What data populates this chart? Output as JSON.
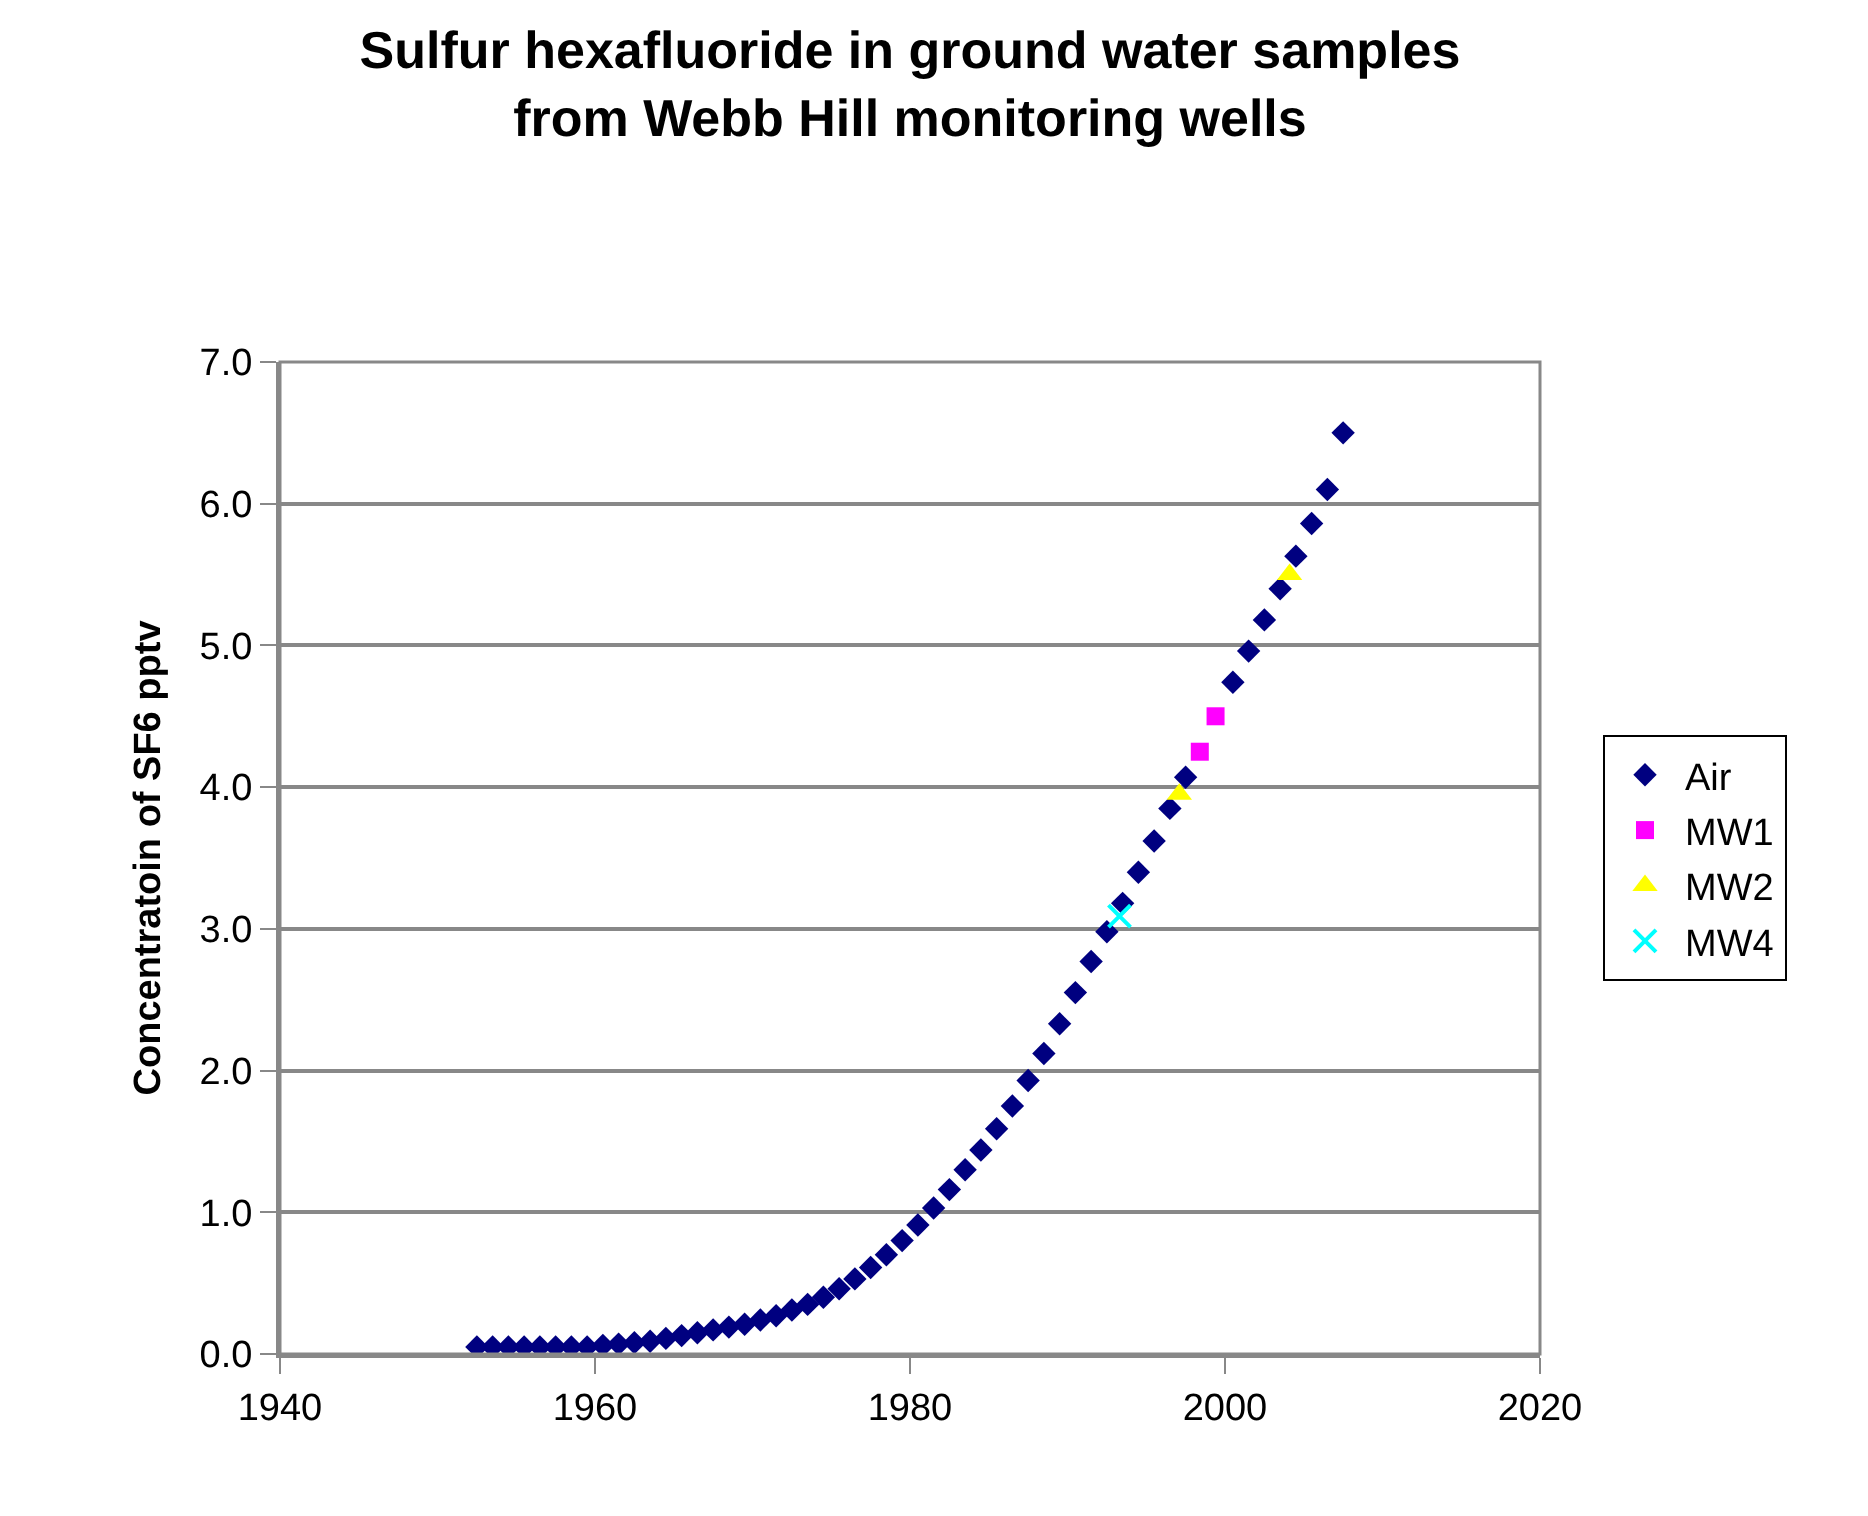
{
  "chart_data": {
    "type": "scatter",
    "title": "Sulfur hexafluoride in ground water samples\nfrom Webb Hill monitoring wells",
    "ylabel": "Concentratoin of SF6 pptv",
    "xlim": [
      1940,
      2020
    ],
    "xticks": [
      1940,
      1960,
      1980,
      2000,
      2020
    ],
    "ylim": [
      0,
      7
    ],
    "yticks": [
      {
        "value": 0,
        "label": "0.0"
      },
      {
        "value": 1,
        "label": "1.0"
      },
      {
        "value": 2,
        "label": "2.0"
      },
      {
        "value": 3,
        "label": "3.0"
      },
      {
        "value": 4,
        "label": "4.0"
      },
      {
        "value": 5,
        "label": "5.0"
      },
      {
        "value": 6,
        "label": "6.0"
      },
      {
        "value": 7,
        "label": "7.0"
      }
    ],
    "grid": "y",
    "legend": "right",
    "series": [
      {
        "name": "Air",
        "color": "#000080",
        "marker": "diamond",
        "x": [
          1952.5,
          1953.5,
          1954.5,
          1955.5,
          1956.5,
          1957.5,
          1958.5,
          1959.5,
          1960.5,
          1961.5,
          1962.5,
          1963.5,
          1964.5,
          1965.5,
          1966.5,
          1967.5,
          1968.5,
          1969.5,
          1970.5,
          1971.5,
          1972.5,
          1973.5,
          1974.5,
          1975.5,
          1976.5,
          1977.5,
          1978.5,
          1979.5,
          1980.5,
          1981.5,
          1982.5,
          1983.5,
          1984.5,
          1985.5,
          1986.5,
          1987.5,
          1988.5,
          1989.5,
          1990.5,
          1991.5,
          1992.5,
          1993.5,
          1994.5,
          1995.5,
          1996.5,
          1997.5,
          1998.5,
          1999.5,
          2000.5,
          2001.5,
          2002.5,
          2003.5,
          2004.5,
          2005.5,
          2006.5,
          2007.5
        ],
        "values": [
          0.05,
          0.05,
          0.05,
          0.05,
          0.05,
          0.05,
          0.05,
          0.05,
          0.06,
          0.07,
          0.08,
          0.09,
          0.11,
          0.13,
          0.15,
          0.17,
          0.19,
          0.21,
          0.24,
          0.27,
          0.31,
          0.35,
          0.4,
          0.46,
          0.53,
          0.61,
          0.7,
          0.8,
          0.91,
          1.03,
          1.16,
          1.3,
          1.44,
          1.59,
          1.75,
          1.93,
          2.12,
          2.33,
          2.55,
          2.77,
          2.98,
          3.18,
          3.4,
          3.62,
          3.85,
          4.07,
          null,
          null,
          4.74,
          4.96,
          5.18,
          5.4,
          5.63,
          5.86,
          6.1,
          6.5
        ]
      },
      {
        "name": "MW1",
        "color": "#ff00ff",
        "marker": "square",
        "x": [
          1998.4,
          1999.4
        ],
        "values": [
          4.25,
          4.5
        ]
      },
      {
        "name": "MW2",
        "color": "#ffff00",
        "marker": "triangle",
        "x": [
          1997.1,
          2004.1
        ],
        "values": [
          3.95,
          5.5
        ]
      },
      {
        "name": "MW4",
        "color": "#00ffff",
        "marker": "cross",
        "x": [
          1993.3
        ],
        "values": [
          3.09
        ]
      }
    ]
  }
}
